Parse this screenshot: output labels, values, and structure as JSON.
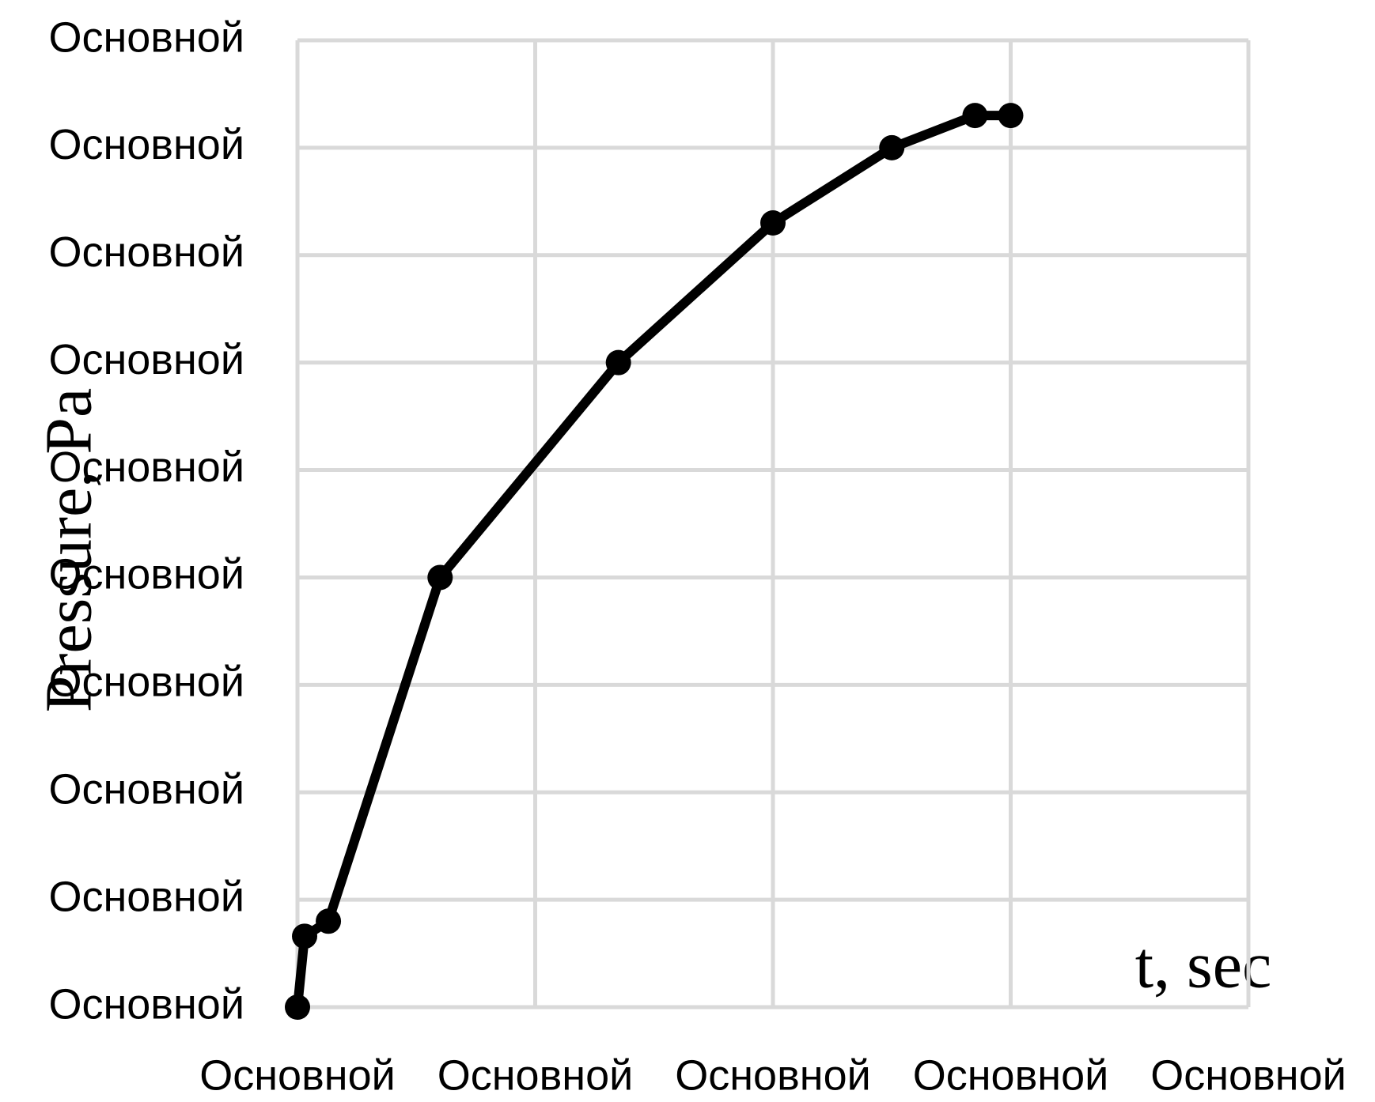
{
  "chart_data": {
    "type": "line",
    "x_label": "t, sec",
    "y_label": "Pressure, Pa",
    "x": [
      0,
      0.03,
      0.13,
      0.6,
      1.35,
      2,
      2.5,
      2.85,
      3
    ],
    "values": [
      0,
      0.66,
      0.8,
      4,
      6,
      7.3,
      8,
      8.3,
      8.3
    ],
    "color": "#000000",
    "xlim": [
      0,
      4
    ],
    "xticks": [
      {
        "value": 0,
        "label": "Основной"
      },
      {
        "value": 1,
        "label": "Основной"
      },
      {
        "value": 2,
        "label": "Основной"
      },
      {
        "value": 3,
        "label": "Основной"
      },
      {
        "value": 4,
        "label": "Основной"
      }
    ],
    "ylim": [
      0,
      9
    ],
    "yticks": [
      {
        "value": 0,
        "label": "Основной"
      },
      {
        "value": 1,
        "label": "Основной"
      },
      {
        "value": 2,
        "label": "Основной"
      },
      {
        "value": 3,
        "label": "Основной"
      },
      {
        "value": 4,
        "label": "Основной"
      },
      {
        "value": 5,
        "label": "Основной"
      },
      {
        "value": 6,
        "label": "Основной"
      },
      {
        "value": 7,
        "label": "Основной"
      },
      {
        "value": 8,
        "label": "Основной"
      },
      {
        "value": 9,
        "label": "Основной"
      }
    ],
    "grid": true
  }
}
